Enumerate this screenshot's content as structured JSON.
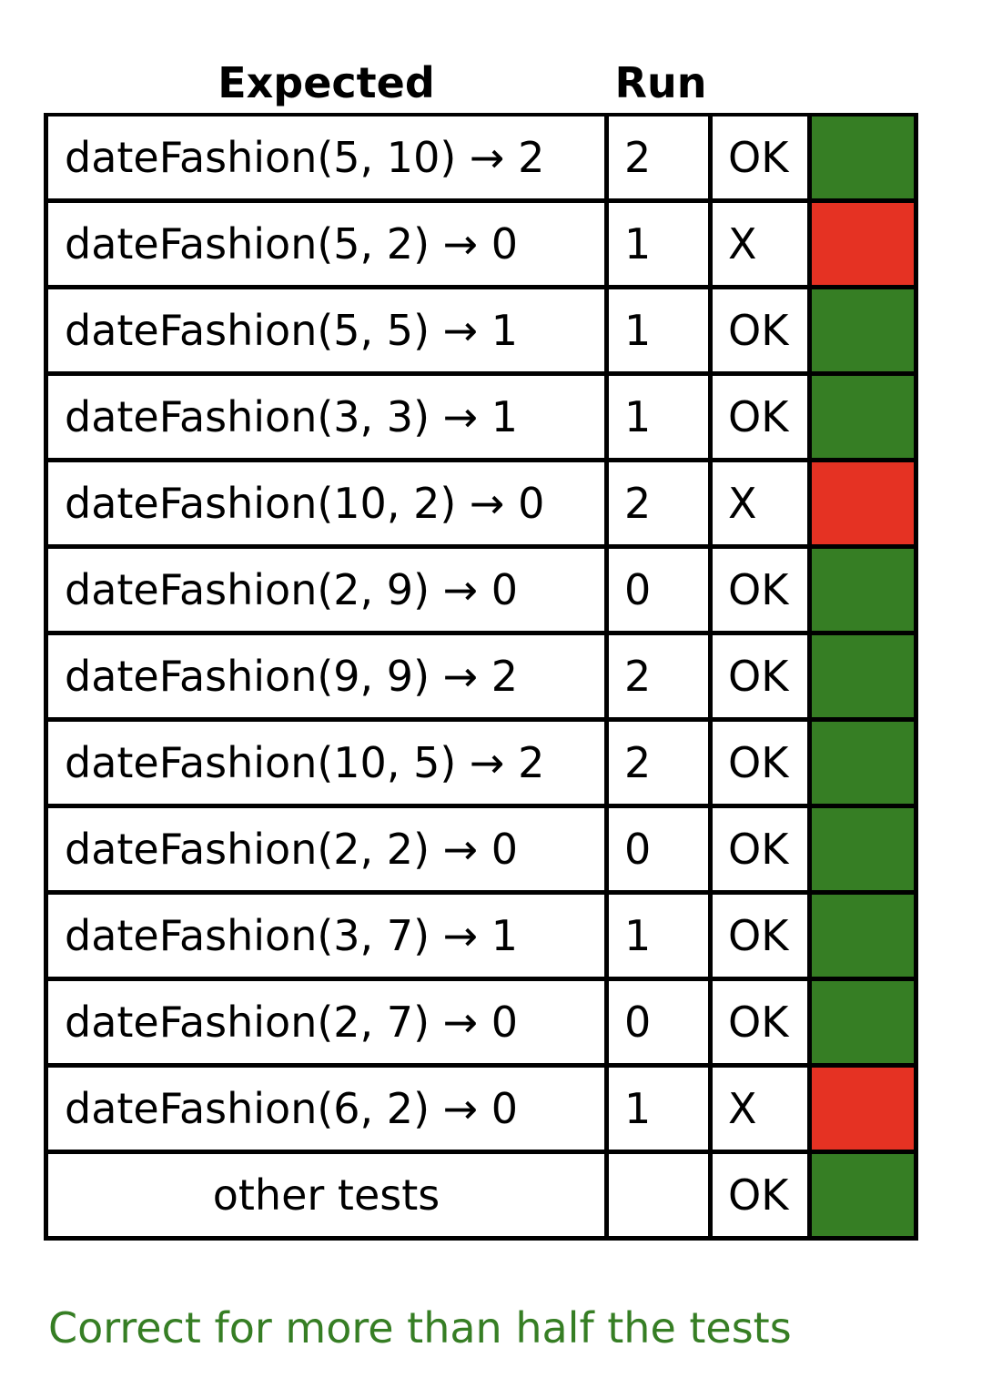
{
  "header": {
    "expected_label": "Expected",
    "run_label": "Run"
  },
  "colors": {
    "pass": "#367e24",
    "fail": "#e53223",
    "summary_text": "#367e24"
  },
  "rows": [
    {
      "expected": "dateFashion(5, 10) → 2",
      "run": "2",
      "status": "OK",
      "result": "pass"
    },
    {
      "expected": "dateFashion(5, 2) → 0",
      "run": "1",
      "status": "X",
      "result": "fail"
    },
    {
      "expected": "dateFashion(5, 5) → 1",
      "run": "1",
      "status": "OK",
      "result": "pass"
    },
    {
      "expected": "dateFashion(3, 3) → 1",
      "run": "1",
      "status": "OK",
      "result": "pass"
    },
    {
      "expected": "dateFashion(10, 2) → 0",
      "run": "2",
      "status": "X",
      "result": "fail"
    },
    {
      "expected": "dateFashion(2, 9) → 0",
      "run": "0",
      "status": "OK",
      "result": "pass"
    },
    {
      "expected": "dateFashion(9, 9) → 2",
      "run": "2",
      "status": "OK",
      "result": "pass"
    },
    {
      "expected": "dateFashion(10, 5) → 2",
      "run": "2",
      "status": "OK",
      "result": "pass"
    },
    {
      "expected": "dateFashion(2, 2) → 0",
      "run": "0",
      "status": "OK",
      "result": "pass"
    },
    {
      "expected": "dateFashion(3, 7) → 1",
      "run": "1",
      "status": "OK",
      "result": "pass"
    },
    {
      "expected": "dateFashion(2, 7) → 0",
      "run": "0",
      "status": "OK",
      "result": "pass"
    },
    {
      "expected": "dateFashion(6, 2) → 0",
      "run": "1",
      "status": "X",
      "result": "fail"
    }
  ],
  "other_tests": {
    "label": "other tests",
    "run": "",
    "status": "OK",
    "result": "pass"
  },
  "summary": "Correct for more than half the tests"
}
